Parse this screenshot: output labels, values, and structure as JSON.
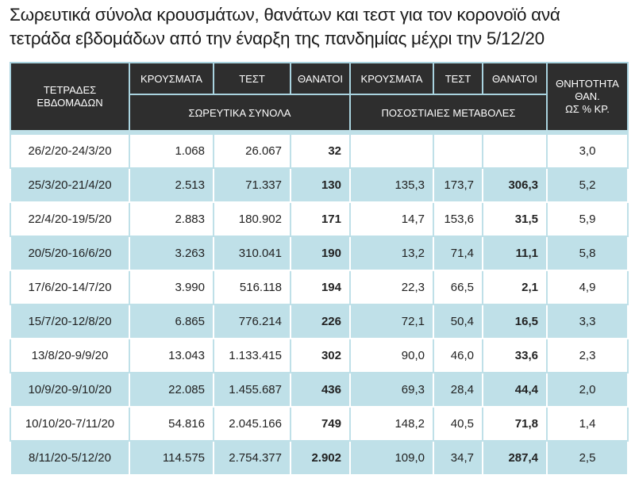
{
  "header": {
    "title_lines": [
      "Σωρευτικά σύνολα κρουσμάτων, θανάτων και τεστ για τον κορονοϊό ανά",
      "τετράδα εβδομάδων από την έναρξη της πανδημίας μέχρι την 5/12/20"
    ]
  },
  "table": {
    "first_header_lines": [
      "ΤΕΤΡΑΔΕΣ",
      "ΕΒΔΟΜΑΔΩΝ"
    ],
    "column_headers": [
      "ΚΡΟΥΣΜΑΤΑ",
      "ΤΕΣΤ",
      "ΘΑΝΑΤΟΙ",
      "ΚΡΟΥΣΜΑΤΑ",
      "ΤΕΣΤ",
      "ΘΑΝΑΤΟΙ"
    ],
    "group_headers": [
      "ΣΩΡΕΥΤΙΚΑ ΣΥΝΟΛΑ",
      "ΠΟΣΟΣΤΙΑΙΕΣ ΜΕΤΑΒΟΛΕΣ"
    ],
    "last_header_lines": [
      "ΘΝΗΤΟΤΗΤΑ",
      "ΘΑΝ.",
      "ΩΣ % ΚΡ."
    ],
    "rows": [
      [
        "26/2/20-24/3/20",
        "1.068",
        "26.067",
        "32",
        null,
        null,
        null,
        "3,0"
      ],
      [
        "25/3/20-21/4/20",
        "2.513",
        "71.337",
        "130",
        "135,3",
        "173,7",
        "306,3",
        "5,2"
      ],
      [
        "22/4/20-19/5/20",
        "2.883",
        "180.902",
        "171",
        "14,7",
        "153,6",
        "31,5",
        "5,9"
      ],
      [
        "20/5/20-16/6/20",
        "3.263",
        "310.041",
        "190",
        "13,2",
        "71,4",
        "11,1",
        "5,8"
      ],
      [
        "17/6/20-14/7/20",
        "3.990",
        "516.118",
        "194",
        "22,3",
        "66,5",
        "2,1",
        "4,9"
      ],
      [
        "15/7/20-12/8/20",
        "6.865",
        "776.214",
        "226",
        "72,1",
        "50,4",
        "16,5",
        "3,3"
      ],
      [
        "13/8/20-9/9/20",
        "13.043",
        "1.133.415",
        "302",
        "90,0",
        "46,0",
        "33,6",
        "2,3"
      ],
      [
        "10/9/20-9/10/20",
        "22.085",
        "1.455.687",
        "436",
        "69,3",
        "28,4",
        "44,4",
        "2,0"
      ],
      [
        "10/10/20-7/11/20",
        "54.816",
        "2.045.166",
        "749",
        "148,2",
        "40,5",
        "71,8",
        "1,4"
      ],
      [
        "8/11/20-5/12/20",
        "114.575",
        "2.754.377",
        "2.902",
        "109,0",
        "34,7",
        "287,4",
        "2,5"
      ]
    ]
  }
}
